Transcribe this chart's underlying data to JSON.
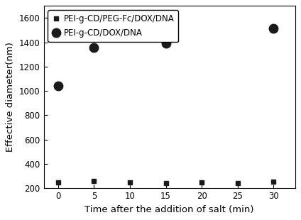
{
  "series1_label": "PEI-g-CD/PEG-Fc/DOX/DNA",
  "series2_label": "PEI-g-CD/DOX/DNA",
  "series1_x": [
    0,
    5,
    10,
    15,
    20,
    25,
    30
  ],
  "series1_y": [
    250,
    260,
    248,
    245,
    248,
    243,
    253
  ],
  "series2_x": [
    0,
    5,
    15,
    30
  ],
  "series2_y": [
    1045,
    1355,
    1395,
    1515
  ],
  "xlabel": "Time after the addition of salt (min)",
  "ylabel": "Effective diameter(nm)",
  "xlim": [
    -2,
    33
  ],
  "ylim": [
    200,
    1700
  ],
  "yticks": [
    200,
    400,
    600,
    800,
    1000,
    1200,
    1400,
    1600
  ],
  "xticks": [
    0,
    5,
    10,
    15,
    20,
    25,
    30
  ],
  "marker1": "s",
  "marker2": "o",
  "color1": "#1a1a1a",
  "color2": "#1a1a1a",
  "markersize1": 5,
  "markersize2": 9,
  "bg_color": "#ffffff",
  "legend_fontsize": 8.5,
  "axis_fontsize": 9.5,
  "tick_fontsize": 8.5
}
